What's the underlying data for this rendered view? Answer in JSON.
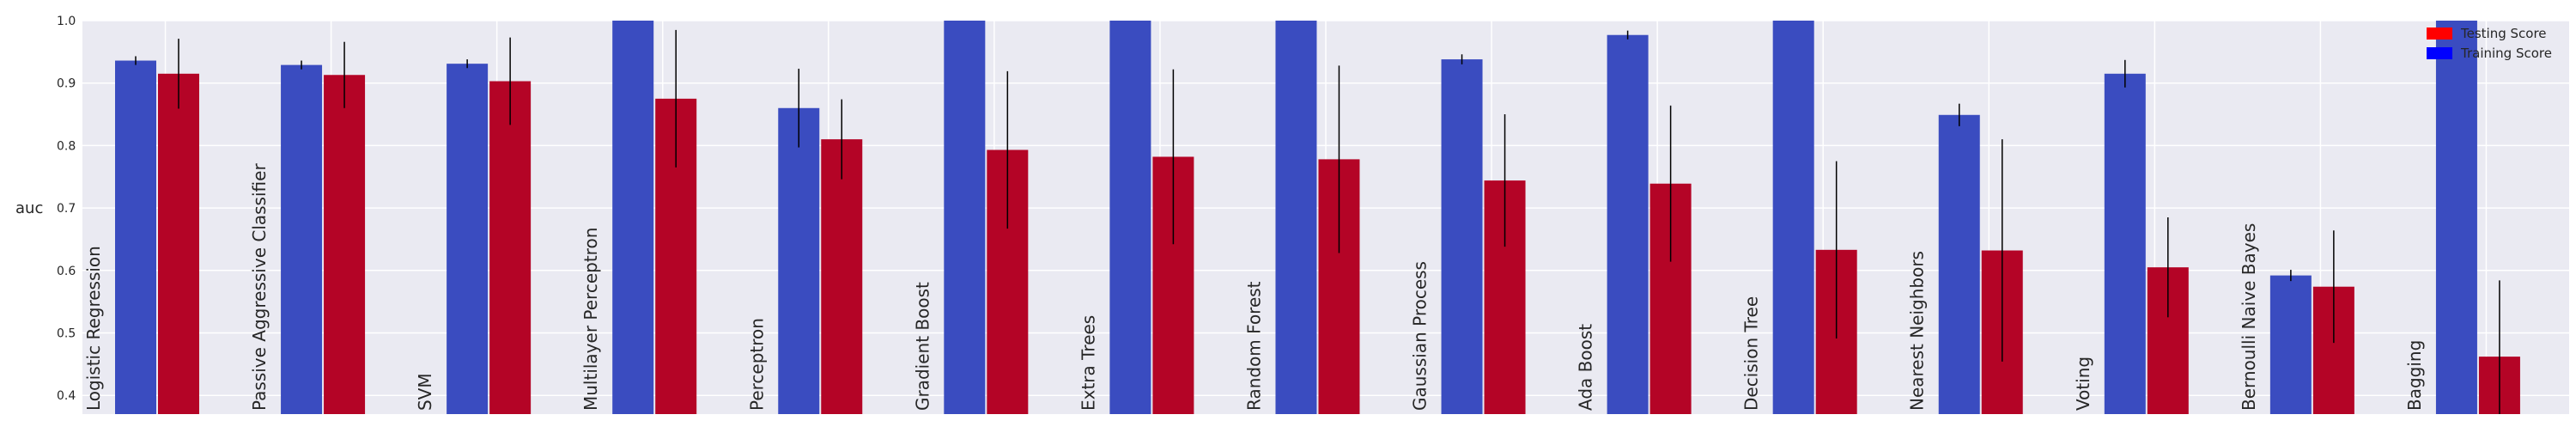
{
  "chart_data": {
    "type": "bar",
    "title": "",
    "xlabel": "",
    "ylabel": "auc",
    "ylim": [
      0.37,
      1.0
    ],
    "yticks": [
      "0.4",
      "0.5",
      "0.6",
      "0.7",
      "0.8",
      "0.9",
      "1.0"
    ],
    "grid": true,
    "legend_position": "top-right",
    "categories": [
      "Logistic Regression",
      "Passive Aggressive Classifier",
      "SVM",
      "Multilayer Perceptron",
      "Perceptron",
      "Gradient Boost",
      "Extra Trees",
      "Random Forest",
      "Gaussian Process",
      "Ada Boost",
      "Decision Tree",
      "Nearest Neighbors",
      "Voting",
      "Bernoulli Naive Bayes",
      "Bagging"
    ],
    "series": [
      {
        "name": "Training Score",
        "color": "#3a4cc0",
        "values": [
          0.936,
          0.929,
          0.931,
          1.0,
          0.86,
          1.0,
          1.0,
          1.0,
          0.938,
          0.977,
          1.0,
          0.849,
          0.915,
          0.592,
          1.0
        ],
        "errors": [
          0.007,
          0.007,
          0.007,
          0.0,
          0.063,
          0.0,
          0.0,
          0.0,
          0.008,
          0.007,
          0.0,
          0.018,
          0.022,
          0.009,
          0.0
        ]
      },
      {
        "name": "Testing Score",
        "color": "#b40426",
        "values": [
          0.915,
          0.913,
          0.903,
          0.875,
          0.81,
          0.793,
          0.782,
          0.778,
          0.744,
          0.739,
          0.633,
          0.632,
          0.605,
          0.574,
          0.462
        ],
        "errors": [
          0.056,
          0.053,
          0.07,
          0.11,
          0.064,
          0.126,
          0.14,
          0.15,
          0.106,
          0.125,
          0.142,
          0.178,
          0.08,
          0.09,
          0.122
        ]
      }
    ],
    "legend_order": [
      "Testing Score",
      "Training Score"
    ],
    "legend_colors": [
      "#ff0000",
      "#0000ff"
    ]
  }
}
